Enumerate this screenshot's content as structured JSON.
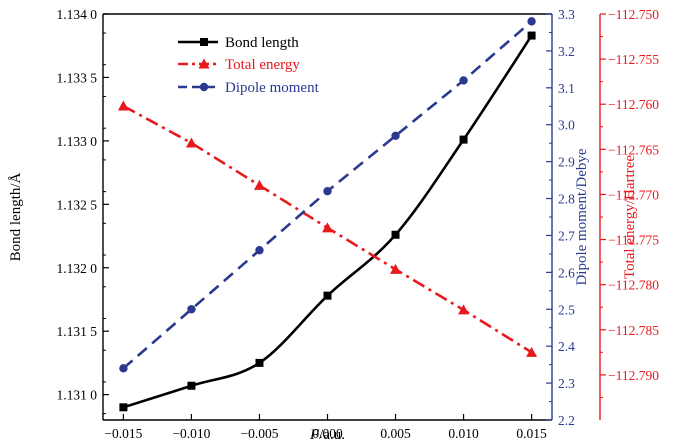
{
  "chart_data": {
    "type": "line",
    "x_label": "F/a.u.",
    "x_label_italic": "F",
    "x_label_rest": "/a.u.",
    "x_ticks": [
      "−0.015",
      "−0.010",
      "−0.005",
      "0.000",
      "0.005",
      "0.010",
      "0.015"
    ],
    "x_tick_values": [
      -0.015,
      -0.01,
      -0.005,
      0.0,
      0.005,
      0.01,
      0.015
    ],
    "x_range": [
      -0.0165,
      0.0165
    ],
    "x": [
      -0.015,
      -0.01,
      -0.005,
      0.0,
      0.005,
      0.01,
      0.015
    ],
    "axes": {
      "left": {
        "label": "Bond length/Å",
        "range": [
          1.1308,
          1.134
        ],
        "ticks": [
          1.131,
          1.1315,
          1.132,
          1.1325,
          1.133,
          1.1335,
          1.134
        ],
        "tick_labels": [
          "1.131 0",
          "1.131 5",
          "1.132 0",
          "1.132 5",
          "1.133 0",
          "1.133 5",
          "1.134 0"
        ],
        "color": "#000000"
      },
      "right1": {
        "label": "Dipole moment/Debye",
        "range": [
          2.2,
          3.3
        ],
        "ticks": [
          2.2,
          2.3,
          2.4,
          2.5,
          2.6,
          2.7,
          2.8,
          2.9,
          3.0,
          3.1,
          3.2,
          3.3
        ],
        "tick_labels": [
          "2.2",
          "2.3",
          "2.4",
          "2.5",
          "2.6",
          "2.7",
          "2.8",
          "2.9",
          "3.0",
          "3.1",
          "3.2",
          "3.3"
        ],
        "color": "#2b3a8f"
      },
      "right2": {
        "label": "Total energy/Hartree",
        "range": [
          -112.795,
          -112.75
        ],
        "ticks": [
          -112.79,
          -112.785,
          -112.78,
          -112.775,
          -112.77,
          -112.765,
          -112.76,
          -112.755,
          -112.75
        ],
        "tick_labels": [
          "−112.790",
          "−112.785",
          "−112.780",
          "−112.775",
          "−112.770",
          "−112.765",
          "−112.760",
          "−112.755",
          "−112.750"
        ],
        "color": "#e8191c"
      }
    },
    "series": [
      {
        "name": "Bond length",
        "axis": "left",
        "color": "#000000",
        "marker": "square",
        "line_style": "solid-smooth",
        "values": [
          1.1309,
          1.13107,
          1.13125,
          1.13178,
          1.13226,
          1.13301,
          1.13383
        ]
      },
      {
        "name": "Total energy",
        "axis": "right2",
        "color": "#e8191c",
        "marker": "triangle",
        "line_style": "dash-dot",
        "values": [
          -112.7602,
          -112.7643,
          -112.769,
          -112.7737,
          -112.7783,
          -112.7828,
          -112.7875
        ]
      },
      {
        "name": "Dipole moment",
        "axis": "right1",
        "color": "#2b3a8f",
        "marker": "circle",
        "line_style": "dashed",
        "values": [
          2.34,
          2.5,
          2.66,
          2.82,
          2.97,
          3.12,
          3.28
        ]
      }
    ],
    "legend_position": "top-left inside plot"
  }
}
